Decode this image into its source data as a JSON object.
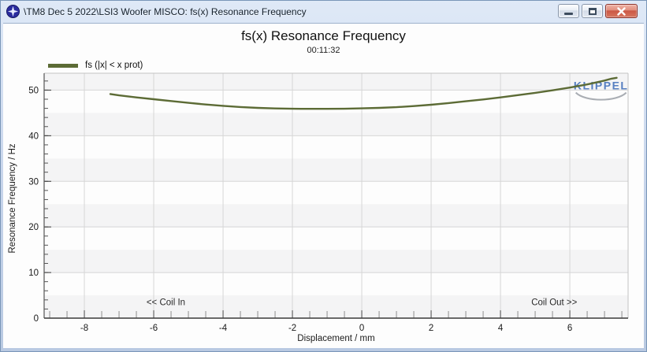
{
  "window": {
    "title": "\\TM8 Dec 5 2022\\LSI3 Woofer MISCO: fs(x) Resonance Frequency",
    "icons": {
      "app": "klippel-logo-star",
      "minimize": "–",
      "restore": "▢",
      "close": "✕"
    }
  },
  "chart": {
    "title": "fs(x) Resonance Frequency",
    "subtitle": "00:11:32",
    "legend_label": "fs (|x| < x prot)",
    "ylabel": "Resonance Frequency / Hz",
    "xlabel": "Displacement / mm",
    "watermark_text": "KLIPPEL",
    "coil_in_label": "<< Coil In",
    "coil_out_label": "Coil Out >>"
  },
  "colors": {
    "curve": "#5c6b35",
    "grid": "#d6d6d6",
    "band": "#f4f4f5",
    "minor_tick": "#8e8e8e",
    "major_tick": "#555555",
    "axis_dark": "#3a3a3a",
    "axis_light": "#c4c4c4",
    "watermark": "#567fc1",
    "watermark_arc": "#a9adb3",
    "text": "#1a1a1a",
    "plot_bg": "#fdfdfd"
  },
  "chart_data": {
    "type": "line",
    "title": "fs(x) Resonance Frequency",
    "subtitle": "00:11:32",
    "xlabel": "Displacement / mm",
    "ylabel": "Resonance Frequency / Hz",
    "xlim": [
      -9.16,
      7.68
    ],
    "ylim": [
      0,
      53.7
    ],
    "x_major_ticks": [
      -8,
      -6,
      -4,
      -2,
      0,
      2,
      4,
      6
    ],
    "y_major_ticks": [
      0,
      10,
      20,
      30,
      40,
      50
    ],
    "x_minor_step": 0.5,
    "y_minor_step": 2,
    "band_step": 5,
    "grid": true,
    "legend_position": "top-left",
    "series": [
      {
        "name": "fs (|x| < x prot)",
        "color": "#5c6b35",
        "points": [
          [
            -7.25,
            49.15
          ],
          [
            -7.0,
            48.85
          ],
          [
            -6.5,
            48.4
          ],
          [
            -6.0,
            48.0
          ],
          [
            -5.5,
            47.6
          ],
          [
            -5.0,
            47.2
          ],
          [
            -4.5,
            46.85
          ],
          [
            -4.0,
            46.55
          ],
          [
            -3.5,
            46.3
          ],
          [
            -3.0,
            46.1
          ],
          [
            -2.5,
            45.98
          ],
          [
            -2.0,
            45.92
          ],
          [
            -1.5,
            45.9
          ],
          [
            -1.0,
            45.9
          ],
          [
            -0.5,
            45.92
          ],
          [
            0.0,
            46.0
          ],
          [
            0.5,
            46.1
          ],
          [
            1.0,
            46.25
          ],
          [
            1.5,
            46.5
          ],
          [
            2.0,
            46.8
          ],
          [
            2.5,
            47.15
          ],
          [
            3.0,
            47.55
          ],
          [
            3.5,
            47.95
          ],
          [
            4.0,
            48.4
          ],
          [
            4.5,
            48.9
          ],
          [
            5.0,
            49.4
          ],
          [
            5.5,
            49.95
          ],
          [
            6.0,
            50.55
          ],
          [
            6.5,
            51.25
          ],
          [
            7.0,
            52.1
          ],
          [
            7.2,
            52.5
          ],
          [
            7.35,
            52.7
          ]
        ]
      }
    ],
    "annotations": [
      {
        "name": "coil-in",
        "text": "<< Coil In",
        "x": -5.65,
        "y": 3.5
      },
      {
        "name": "coil-out",
        "text": "Coil Out >>",
        "x": 5.55,
        "y": 3.5
      }
    ],
    "watermark": {
      "text": "KLIPPEL",
      "x": 6.9,
      "y": 51.0
    }
  }
}
